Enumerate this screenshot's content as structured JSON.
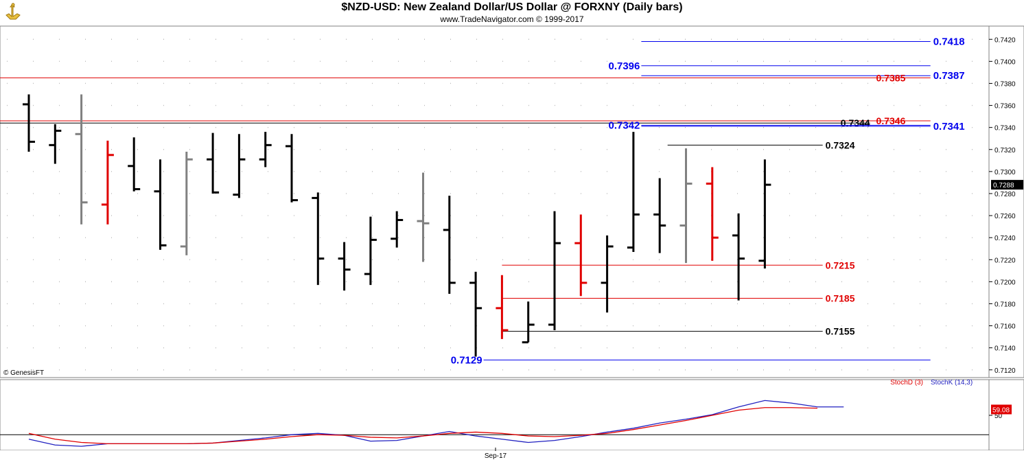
{
  "header": {
    "title": "$NZD-USD:  New Zealand Dollar/US Dollar @ FORXNY  (Daily bars)",
    "subtitle": "www.TradeNavigator.com © 1999-2017"
  },
  "watermark": "© GenesisFT",
  "chart_data": {
    "type": "ohlc",
    "bar_colors": {
      "black": "#000000",
      "gray": "#808080",
      "red": "#e00000"
    },
    "price_axis": {
      "ylim": [
        0.7113,
        0.7432
      ],
      "ticks": [
        "0.7120",
        "0.7140",
        "0.7160",
        "0.7180",
        "0.7200",
        "0.7220",
        "0.7240",
        "0.7260",
        "0.7280",
        "0.7300",
        "0.7320",
        "0.7340",
        "0.7360",
        "0.7380",
        "0.7400",
        "0.7420"
      ],
      "last_price": "0.7288"
    },
    "x_label": "Sep-17",
    "bars": [
      {
        "o": 0.7361,
        "h": 0.737,
        "l": 0.7318,
        "c": 0.7327,
        "color": "black"
      },
      {
        "o": 0.7324,
        "h": 0.7343,
        "l": 0.7307,
        "c": 0.7337,
        "color": "black"
      },
      {
        "o": 0.7334,
        "h": 0.737,
        "l": 0.7252,
        "c": 0.7272,
        "color": "gray"
      },
      {
        "o": 0.727,
        "h": 0.7328,
        "l": 0.7252,
        "c": 0.7315,
        "color": "red"
      },
      {
        "o": 0.7305,
        "h": 0.7331,
        "l": 0.7282,
        "c": 0.7284,
        "color": "black"
      },
      {
        "o": 0.7282,
        "h": 0.7311,
        "l": 0.7229,
        "c": 0.7233,
        "color": "black"
      },
      {
        "o": 0.7232,
        "h": 0.7318,
        "l": 0.7224,
        "c": 0.7311,
        "color": "gray"
      },
      {
        "o": 0.7311,
        "h": 0.7335,
        "l": 0.728,
        "c": 0.7281,
        "color": "black"
      },
      {
        "o": 0.7279,
        "h": 0.7334,
        "l": 0.7276,
        "c": 0.7311,
        "color": "black"
      },
      {
        "o": 0.7311,
        "h": 0.7336,
        "l": 0.7304,
        "c": 0.7324,
        "color": "black"
      },
      {
        "o": 0.7323,
        "h": 0.7334,
        "l": 0.7272,
        "c": 0.7274,
        "color": "black"
      },
      {
        "o": 0.7276,
        "h": 0.7281,
        "l": 0.7197,
        "c": 0.7221,
        "color": "black"
      },
      {
        "o": 0.7221,
        "h": 0.7236,
        "l": 0.7192,
        "c": 0.7211,
        "color": "black"
      },
      {
        "o": 0.7207,
        "h": 0.7259,
        "l": 0.7197,
        "c": 0.7238,
        "color": "black"
      },
      {
        "o": 0.7239,
        "h": 0.7264,
        "l": 0.7231,
        "c": 0.7256,
        "color": "black"
      },
      {
        "o": 0.7255,
        "h": 0.7299,
        "l": 0.7218,
        "c": 0.7253,
        "color": "gray"
      },
      {
        "o": 0.7247,
        "h": 0.7278,
        "l": 0.7189,
        "c": 0.7199,
        "color": "black"
      },
      {
        "o": 0.7199,
        "h": 0.7209,
        "l": 0.7132,
        "c": 0.7176,
        "color": "black"
      },
      {
        "o": 0.7176,
        "h": 0.7206,
        "l": 0.7148,
        "c": 0.7156,
        "color": "red"
      },
      {
        "o": 0.7145,
        "h": 0.7182,
        "l": 0.7145,
        "c": 0.7161,
        "color": "black"
      },
      {
        "o": 0.7161,
        "h": 0.7264,
        "l": 0.7156,
        "c": 0.7235,
        "color": "black"
      },
      {
        "o": 0.7235,
        "h": 0.7261,
        "l": 0.7187,
        "c": 0.7199,
        "color": "red"
      },
      {
        "o": 0.7199,
        "h": 0.7242,
        "l": 0.7172,
        "c": 0.7232,
        "color": "black"
      },
      {
        "o": 0.7231,
        "h": 0.7336,
        "l": 0.7227,
        "c": 0.7261,
        "color": "black"
      },
      {
        "o": 0.7261,
        "h": 0.7294,
        "l": 0.7226,
        "c": 0.7251,
        "color": "black"
      },
      {
        "o": 0.7251,
        "h": 0.7321,
        "l": 0.7217,
        "c": 0.7289,
        "color": "gray"
      },
      {
        "o": 0.7289,
        "h": 0.7304,
        "l": 0.7219,
        "c": 0.724,
        "color": "red"
      },
      {
        "o": 0.7242,
        "h": 0.7262,
        "l": 0.7183,
        "c": 0.7221,
        "color": "black"
      },
      {
        "o": 0.7219,
        "h": 0.7311,
        "l": 0.7212,
        "c": 0.7288,
        "color": "black"
      }
    ],
    "levels": [
      {
        "price": 0.7418,
        "label": "0.7418",
        "color": "#0000ee",
        "from": 23.3,
        "to": 34.3,
        "label_at": "right"
      },
      {
        "price": 0.7396,
        "label": "0.7396",
        "color": "#0000ee",
        "from": 23.3,
        "to": 34.3,
        "label_at": "left"
      },
      {
        "price": 0.7387,
        "label": "0.7387",
        "color": "#0000ee",
        "from": 23.3,
        "to": 34.3,
        "label_at": "right"
      },
      {
        "price": 0.7385,
        "label": "0.7385",
        "color": "#e00000",
        "from": -1,
        "to": 34.3,
        "label_at": "right-inner"
      },
      {
        "price": 0.7346,
        "label": "0.7346",
        "color": "#e00000",
        "from": -1,
        "to": 34.3,
        "label_at": "right-inner"
      },
      {
        "price": 0.7344,
        "label": "0.7344",
        "color": "#000000",
        "from": -1,
        "to": 32.0,
        "label_at": "right-inner2"
      },
      {
        "price": 0.7342,
        "label": "0.7342",
        "color": "#0000ee",
        "from": 23.3,
        "to": 34.3,
        "label_at": "left"
      },
      {
        "price": 0.7341,
        "label": "0.7341",
        "color": "#0000ee",
        "from": 23.3,
        "to": 34.3,
        "label_at": "right"
      },
      {
        "price": 0.7324,
        "label": "0.7324",
        "color": "#000000",
        "from": 24.3,
        "to": 30.2,
        "label_at": "end"
      },
      {
        "price": 0.7215,
        "label": "0.7215",
        "color": "#e00000",
        "from": 18.0,
        "to": 30.2,
        "label_at": "end"
      },
      {
        "price": 0.7185,
        "label": "0.7185",
        "color": "#e00000",
        "from": 18.0,
        "to": 30.2,
        "label_at": "end"
      },
      {
        "price": 0.7155,
        "label": "0.7155",
        "color": "#000000",
        "from": 18.0,
        "to": 30.2,
        "label_at": "end"
      },
      {
        "price": 0.7129,
        "label": "0.7129",
        "color": "#0000ee",
        "from": 17.3,
        "to": 34.3,
        "label_at": "left"
      }
    ],
    "stochastic": {
      "ylim": [
        0,
        100
      ],
      "tick": "50",
      "last_value": "59.08",
      "legend": [
        {
          "name": "StochD (3)",
          "color": "#e00000"
        },
        {
          "name": "StochK (14,3)",
          "color": "#2020c0"
        }
      ],
      "d_values": [
        22,
        13,
        8,
        6,
        6,
        6,
        6,
        7,
        10,
        13,
        17,
        20,
        19,
        16,
        15,
        18,
        22,
        24,
        22,
        18,
        17,
        19,
        22,
        28,
        35,
        42,
        50,
        58,
        62,
        62,
        61
      ],
      "k_values": [
        13,
        4,
        2,
        6,
        6,
        6,
        6,
        7,
        11,
        15,
        20,
        22,
        19,
        10,
        11,
        18,
        25,
        18,
        13,
        8,
        11,
        17,
        24,
        30,
        38,
        44,
        51,
        63,
        73,
        69,
        63,
        63
      ]
    }
  }
}
